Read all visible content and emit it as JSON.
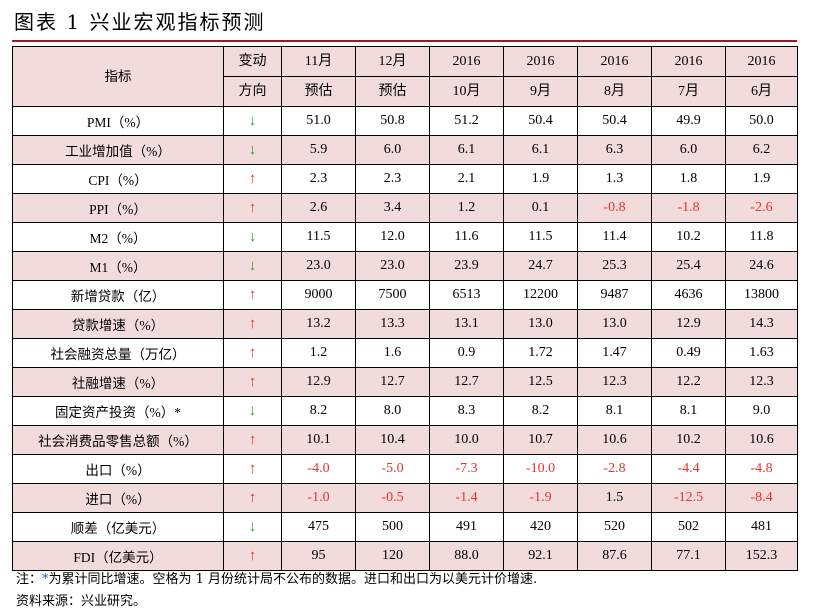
{
  "title": "图表 1   兴业宏观指标预测",
  "headers": {
    "indicator": "指标",
    "direction_top": "变动",
    "direction_bottom": "方向",
    "nov_top": "11月",
    "nov_bottom": "预估",
    "dec_top": "12月",
    "dec_bottom": "预估",
    "c1_top": "2016",
    "c1_bottom": "10月",
    "c2_top": "2016",
    "c2_bottom": "9月",
    "c3_top": "2016",
    "c3_bottom": "8月",
    "c4_top": "2016",
    "c4_bottom": "7月",
    "c5_top": "2016",
    "c5_bottom": "6月"
  },
  "rows": [
    {
      "name": "PMI（%）",
      "dir": "↓",
      "up": false,
      "nov": "51.0",
      "dec": "50.8",
      "m10": "51.2",
      "m9": "50.4",
      "m8": "50.4",
      "m7": "49.9",
      "m6": "50.0"
    },
    {
      "name": "工业增加值（%）",
      "dir": "↓",
      "up": false,
      "nov": "5.9",
      "dec": "6.0",
      "m10": "6.1",
      "m9": "6.1",
      "m8": "6.3",
      "m7": "6.0",
      "m6": "6.2"
    },
    {
      "name": "CPI（%）",
      "dir": "↑",
      "up": true,
      "nov": "2.3",
      "dec": "2.3",
      "m10": "2.1",
      "m9": "1.9",
      "m8": "1.3",
      "m7": "1.8",
      "m6": "1.9"
    },
    {
      "name": "PPI（%）",
      "dir": "↑",
      "up": true,
      "nov": "2.6",
      "dec": "3.4",
      "m10": "1.2",
      "m9": "0.1",
      "m8": "-0.8",
      "m7": "-1.8",
      "m6": "-2.6"
    },
    {
      "name": "M2（%）",
      "dir": "↓",
      "up": false,
      "nov": "11.5",
      "dec": "12.0",
      "m10": "11.6",
      "m9": "11.5",
      "m8": "11.4",
      "m7": "10.2",
      "m6": "11.8"
    },
    {
      "name": "M1（%）",
      "dir": "↓",
      "up": false,
      "nov": "23.0",
      "dec": "23.0",
      "m10": "23.9",
      "m9": "24.7",
      "m8": "25.3",
      "m7": "25.4",
      "m6": "24.6"
    },
    {
      "name": "新增贷款（亿）",
      "dir": "↑",
      "up": true,
      "nov": "9000",
      "dec": "7500",
      "m10": "6513",
      "m9": "12200",
      "m8": "9487",
      "m7": "4636",
      "m6": "13800"
    },
    {
      "name": "贷款增速（%）",
      "dir": "↑",
      "up": true,
      "nov": "13.2",
      "dec": "13.3",
      "m10": "13.1",
      "m9": "13.0",
      "m8": "13.0",
      "m7": "12.9",
      "m6": "14.3"
    },
    {
      "name": "社会融资总量（万亿）",
      "dir": "↑",
      "up": true,
      "nov": "1.2",
      "dec": "1.6",
      "m10": "0.9",
      "m9": "1.72",
      "m8": "1.47",
      "m7": "0.49",
      "m6": "1.63"
    },
    {
      "name": "社融增速（%）",
      "dir": "↑",
      "up": true,
      "nov": "12.9",
      "dec": "12.7",
      "m10": "12.7",
      "m9": "12.5",
      "m8": "12.3",
      "m7": "12.2",
      "m6": "12.3"
    },
    {
      "name": "固定资产投资（%）*",
      "dir": "↓",
      "up": false,
      "nov": "8.2",
      "dec": "8.0",
      "m10": "8.3",
      "m9": "8.2",
      "m8": "8.1",
      "m7": "8.1",
      "m6": "9.0"
    },
    {
      "name": "社会消费品零售总额（%）",
      "dir": "↑",
      "up": true,
      "nov": "10.1",
      "dec": "10.4",
      "m10": "10.0",
      "m9": "10.7",
      "m8": "10.6",
      "m7": "10.2",
      "m6": "10.6"
    },
    {
      "name": "出口（%）",
      "dir": "↑",
      "up": true,
      "nov": "-4.0",
      "dec": "-5.0",
      "m10": "-7.3",
      "m9": "-10.0",
      "m8": "-2.8",
      "m7": "-4.4",
      "m6": "-4.8"
    },
    {
      "name": "进口（%）",
      "dir": "↑",
      "up": true,
      "nov": "-1.0",
      "dec": "-0.5",
      "m10": "-1.4",
      "m9": "-1.9",
      "m8": "1.5",
      "m7": "-12.5",
      "m6": "-8.4"
    },
    {
      "name": "顺差（亿美元）",
      "dir": "↓",
      "up": false,
      "nov": "475",
      "dec": "500",
      "m10": "491",
      "m9": "420",
      "m8": "520",
      "m7": "502",
      "m6": "481"
    },
    {
      "name": "FDI（亿美元）",
      "dir": "↑",
      "up": true,
      "nov": "95",
      "dec": "120",
      "m10": "88.0",
      "m9": "92.1",
      "m8": "87.6",
      "m7": "77.1",
      "m6": "152.3"
    }
  ],
  "note_prefix": "注：",
  "note_star": "*",
  "note_text": "为累计同比增速。空格为 1 月份统计局不公布的数据。进口和出口为以美元计价增速.",
  "source": "资料来源：兴业研究。",
  "colors": {
    "header_shade": "#f2dcdb",
    "up_arrow": "#e8332b",
    "down_arrow": "#2aa02a",
    "negative": "#e8332b",
    "rule": "#9a1c1c"
  }
}
